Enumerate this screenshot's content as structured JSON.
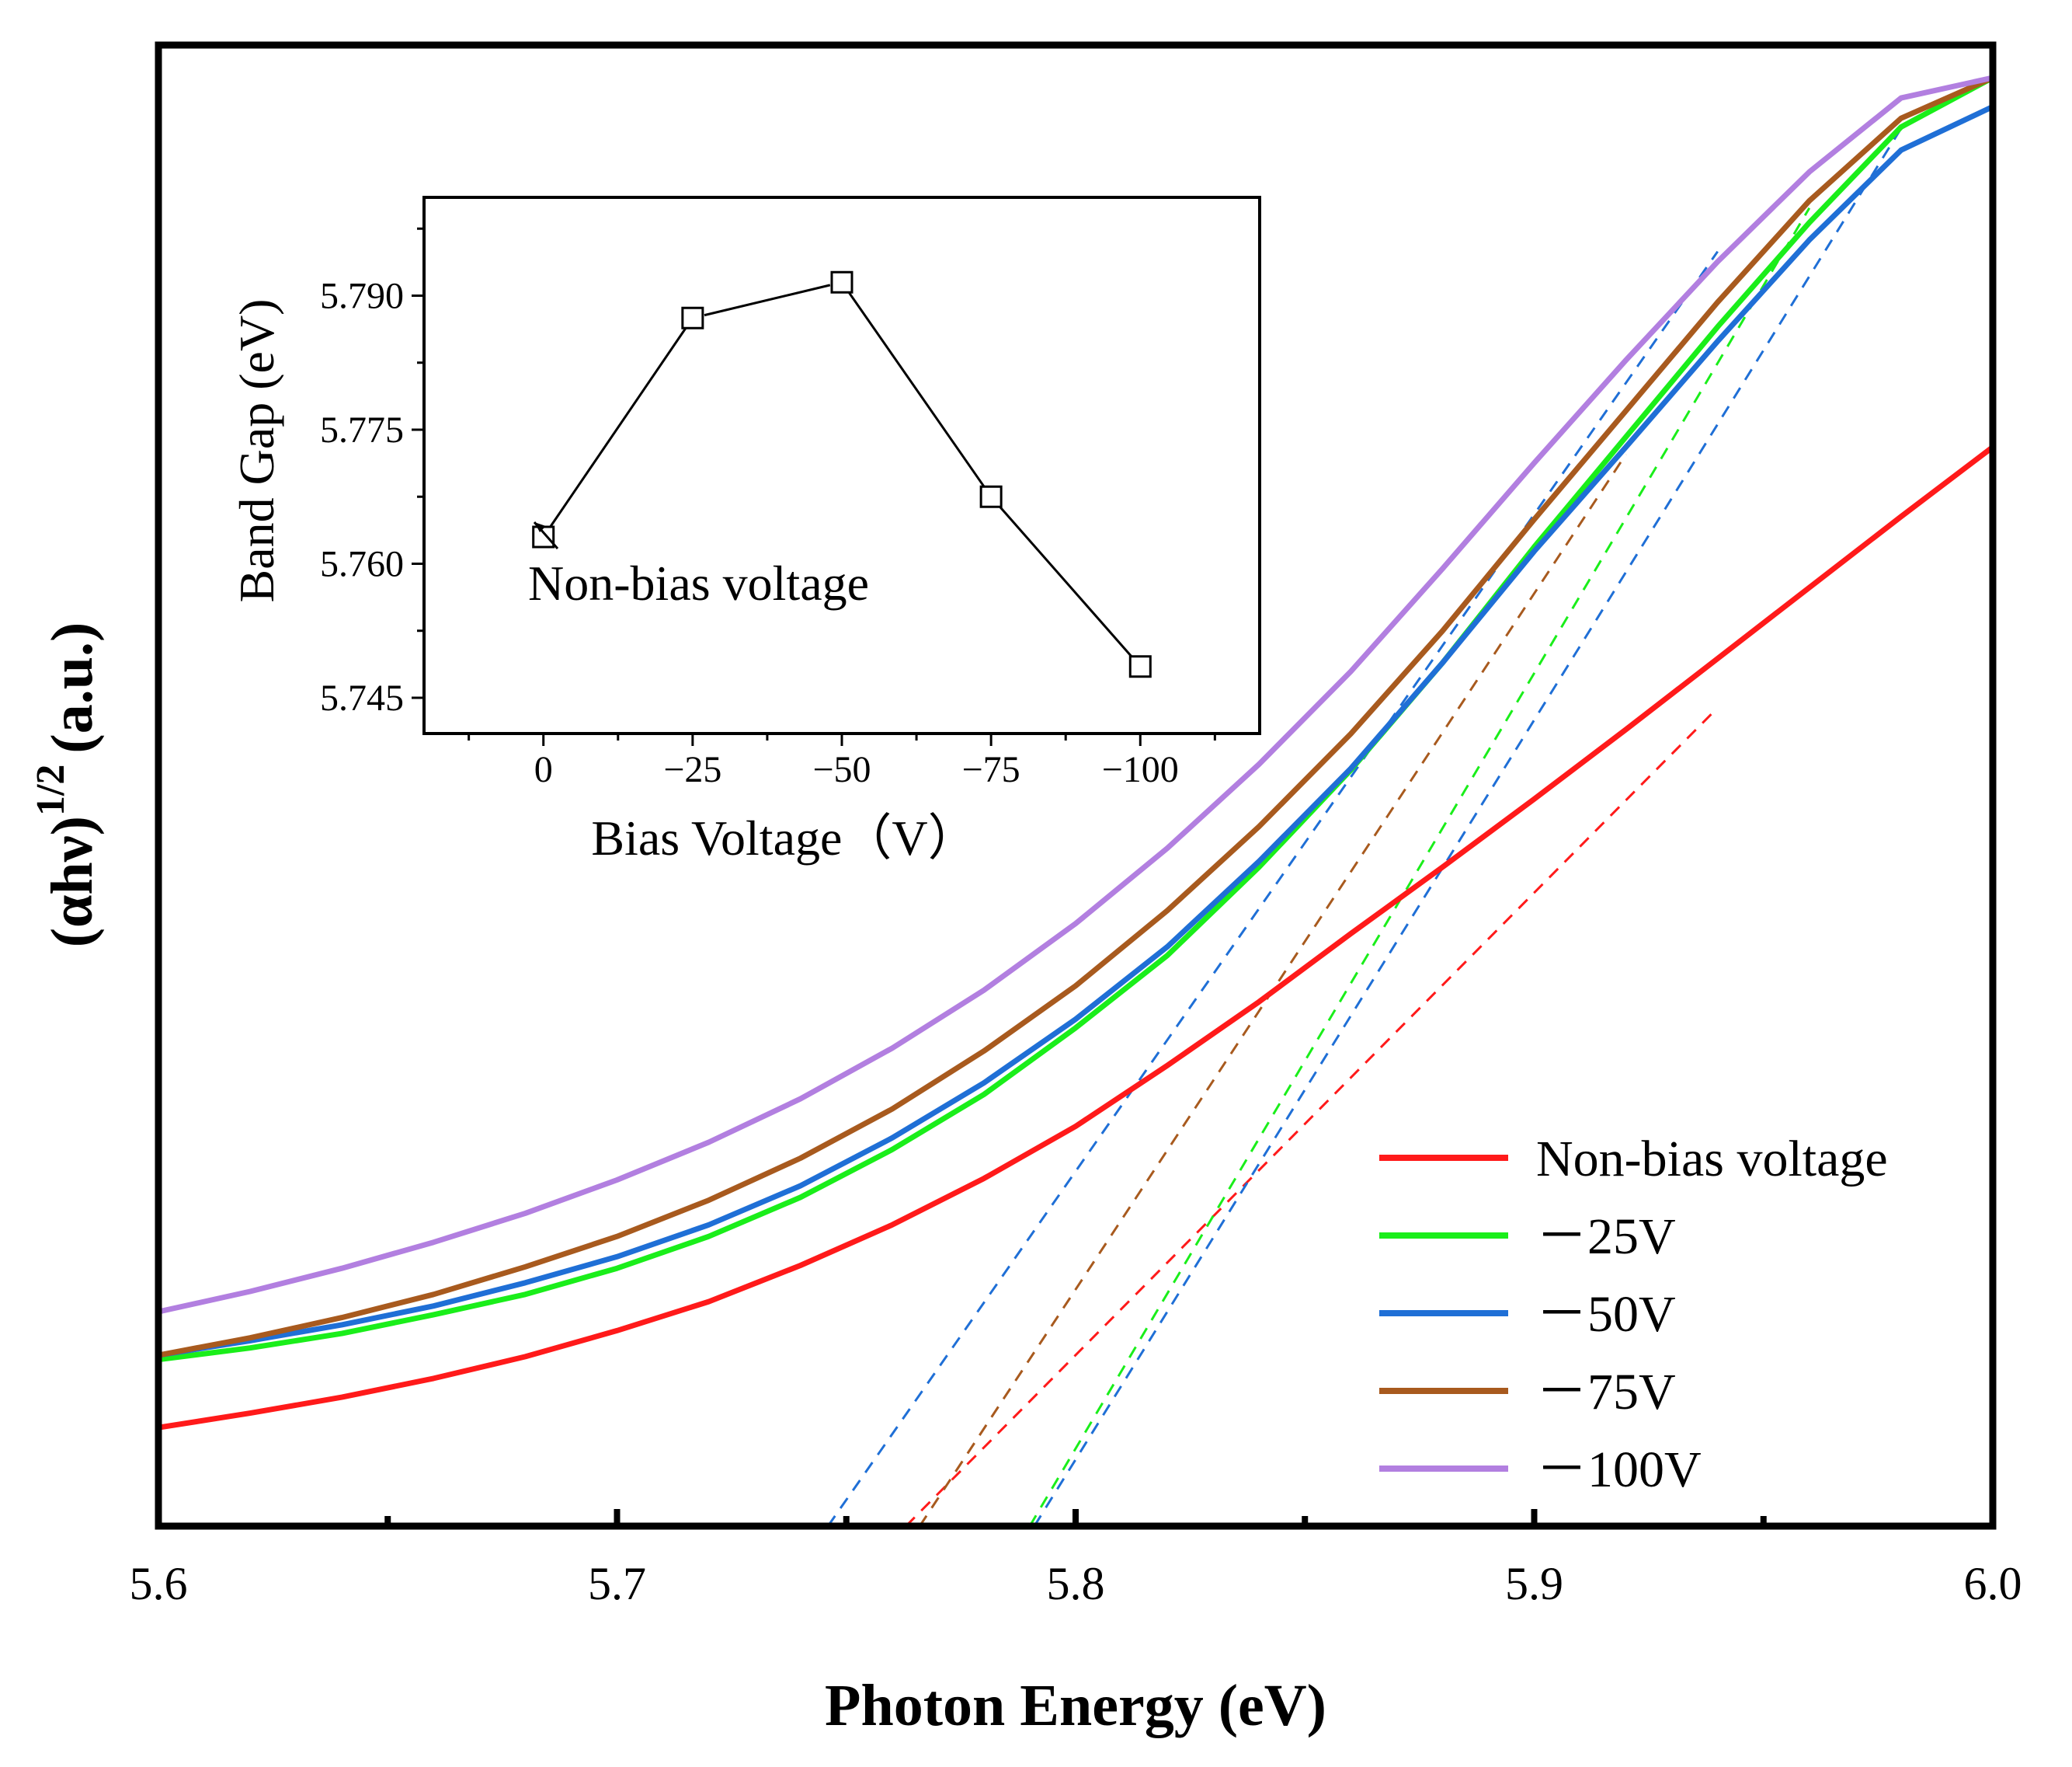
{
  "chart_data": [
    {
      "type": "line",
      "role": "main",
      "xlabel": "Photon Energy (eV)",
      "ylabel": "(αhν)",
      "ylabel_sup": "1/2",
      "ylabel_unit": "(a.u.)",
      "xlim": [
        5.6,
        6.0
      ],
      "ylim": [
        0,
        1
      ],
      "xticks": [
        5.6,
        5.7,
        5.8,
        5.9,
        6.0
      ],
      "xtick_labels": [
        "5.6",
        "5.7",
        "5.8",
        "5.9",
        "6.0"
      ],
      "x_minor_ticks": [
        5.65,
        5.75,
        5.85,
        5.95
      ],
      "y_ticks_shown": false,
      "legend_position": "bottom-right",
      "series": [
        {
          "name": "Non-bias voltage",
          "color": "#ff1a1a",
          "x": [
            5.6,
            5.62,
            5.64,
            5.66,
            5.68,
            5.7,
            5.72,
            5.74,
            5.76,
            5.78,
            5.8,
            5.82,
            5.84,
            5.86,
            5.88,
            5.9,
            5.92,
            5.94,
            5.96,
            5.98,
            6.0
          ],
          "y": [
            0.068,
            0.078,
            0.089,
            0.102,
            0.117,
            0.135,
            0.155,
            0.18,
            0.208,
            0.24,
            0.276,
            0.318,
            0.362,
            0.409,
            0.455,
            0.502,
            0.55,
            0.599,
            0.648,
            0.697,
            0.745
          ]
        },
        {
          "name": "－25V",
          "color": "#1aee1a",
          "x": [
            5.6,
            5.62,
            5.64,
            5.66,
            5.68,
            5.7,
            5.72,
            5.74,
            5.76,
            5.78,
            5.8,
            5.82,
            5.84,
            5.86,
            5.88,
            5.9,
            5.92,
            5.94,
            5.96,
            5.98,
            6.0
          ],
          "y": [
            0.115,
            0.123,
            0.133,
            0.146,
            0.16,
            0.178,
            0.2,
            0.227,
            0.26,
            0.298,
            0.344,
            0.394,
            0.455,
            0.522,
            0.596,
            0.676,
            0.752,
            0.828,
            0.9,
            0.966,
            1.0
          ]
        },
        {
          "name": "－50V",
          "color": "#1f6fd6",
          "x": [
            5.6,
            5.62,
            5.64,
            5.66,
            5.68,
            5.7,
            5.72,
            5.74,
            5.76,
            5.78,
            5.8,
            5.82,
            5.84,
            5.86,
            5.88,
            5.9,
            5.92,
            5.94,
            5.96,
            5.98,
            6.0
          ],
          "y": [
            0.118,
            0.128,
            0.139,
            0.152,
            0.168,
            0.186,
            0.208,
            0.235,
            0.268,
            0.306,
            0.35,
            0.4,
            0.459,
            0.523,
            0.596,
            0.673,
            0.745,
            0.818,
            0.888,
            0.95,
            0.98
          ]
        },
        {
          "name": "－75V",
          "color": "#a85a1e",
          "x": [
            5.6,
            5.62,
            5.64,
            5.66,
            5.68,
            5.7,
            5.72,
            5.74,
            5.76,
            5.78,
            5.8,
            5.82,
            5.84,
            5.86,
            5.88,
            5.9,
            5.92,
            5.94,
            5.96,
            5.98,
            6.0
          ],
          "y": [
            0.118,
            0.13,
            0.144,
            0.16,
            0.179,
            0.2,
            0.225,
            0.254,
            0.288,
            0.328,
            0.373,
            0.425,
            0.483,
            0.547,
            0.618,
            0.695,
            0.77,
            0.845,
            0.915,
            0.972,
            1.0
          ]
        },
        {
          "name": "－100V",
          "color": "#b27fe0",
          "x": [
            5.6,
            5.62,
            5.64,
            5.66,
            5.68,
            5.7,
            5.72,
            5.74,
            5.76,
            5.78,
            5.8,
            5.82,
            5.84,
            5.86,
            5.88,
            5.9,
            5.92,
            5.94,
            5.96,
            5.98,
            6.0
          ],
          "y": [
            0.148,
            0.162,
            0.178,
            0.196,
            0.216,
            0.239,
            0.265,
            0.295,
            0.33,
            0.37,
            0.416,
            0.468,
            0.526,
            0.59,
            0.661,
            0.734,
            0.805,
            0.873,
            0.935,
            0.986,
            1.0
          ]
        }
      ],
      "tangents": [
        {
          "name": "Non-bias voltage",
          "color": "#ff1a1a",
          "x": [
            5.763,
            5.94
          ],
          "y": [
            0.0,
            0.565
          ]
        },
        {
          "name": "－25V",
          "color": "#1aee1a",
          "x": [
            5.79,
            5.96
          ],
          "y": [
            0.0,
            0.91
          ]
        },
        {
          "name": "－50V",
          "color": "#1f6fd6",
          "x": [
            5.791,
            5.98
          ],
          "y": [
            0.0,
            0.965
          ]
        },
        {
          "name": "－75V",
          "color": "#a85a1e",
          "x": [
            5.766,
            5.92
          ],
          "y": [
            0.0,
            0.74
          ]
        },
        {
          "name": "－100V",
          "color": "#1f6fd6",
          "x": [
            5.746,
            5.94
          ],
          "y": [
            0.0,
            0.88
          ]
        }
      ]
    },
    {
      "type": "line",
      "role": "inset",
      "xlabel": "Bias Voltage（V）",
      "ylabel": "Band Gap (eV)",
      "categories": [
        "0",
        "−25",
        "−50",
        "−75",
        "−100"
      ],
      "x": [
        0,
        -25,
        -50,
        -75,
        -100
      ],
      "y": [
        5.763,
        5.7875,
        5.7915,
        5.7675,
        5.7485
      ],
      "xlim": [
        20,
        -120
      ],
      "ylim": [
        5.741,
        5.801
      ],
      "yticks": [
        5.745,
        5.76,
        5.775,
        5.79
      ],
      "ytick_labels": [
        "5.745",
        "5.760",
        "5.775",
        "5.790"
      ],
      "marker": "open-square",
      "color": "#000000",
      "annotation": {
        "text": "Non-bias voltage",
        "points_to_x": 0,
        "points_to_y": 5.763
      }
    }
  ]
}
